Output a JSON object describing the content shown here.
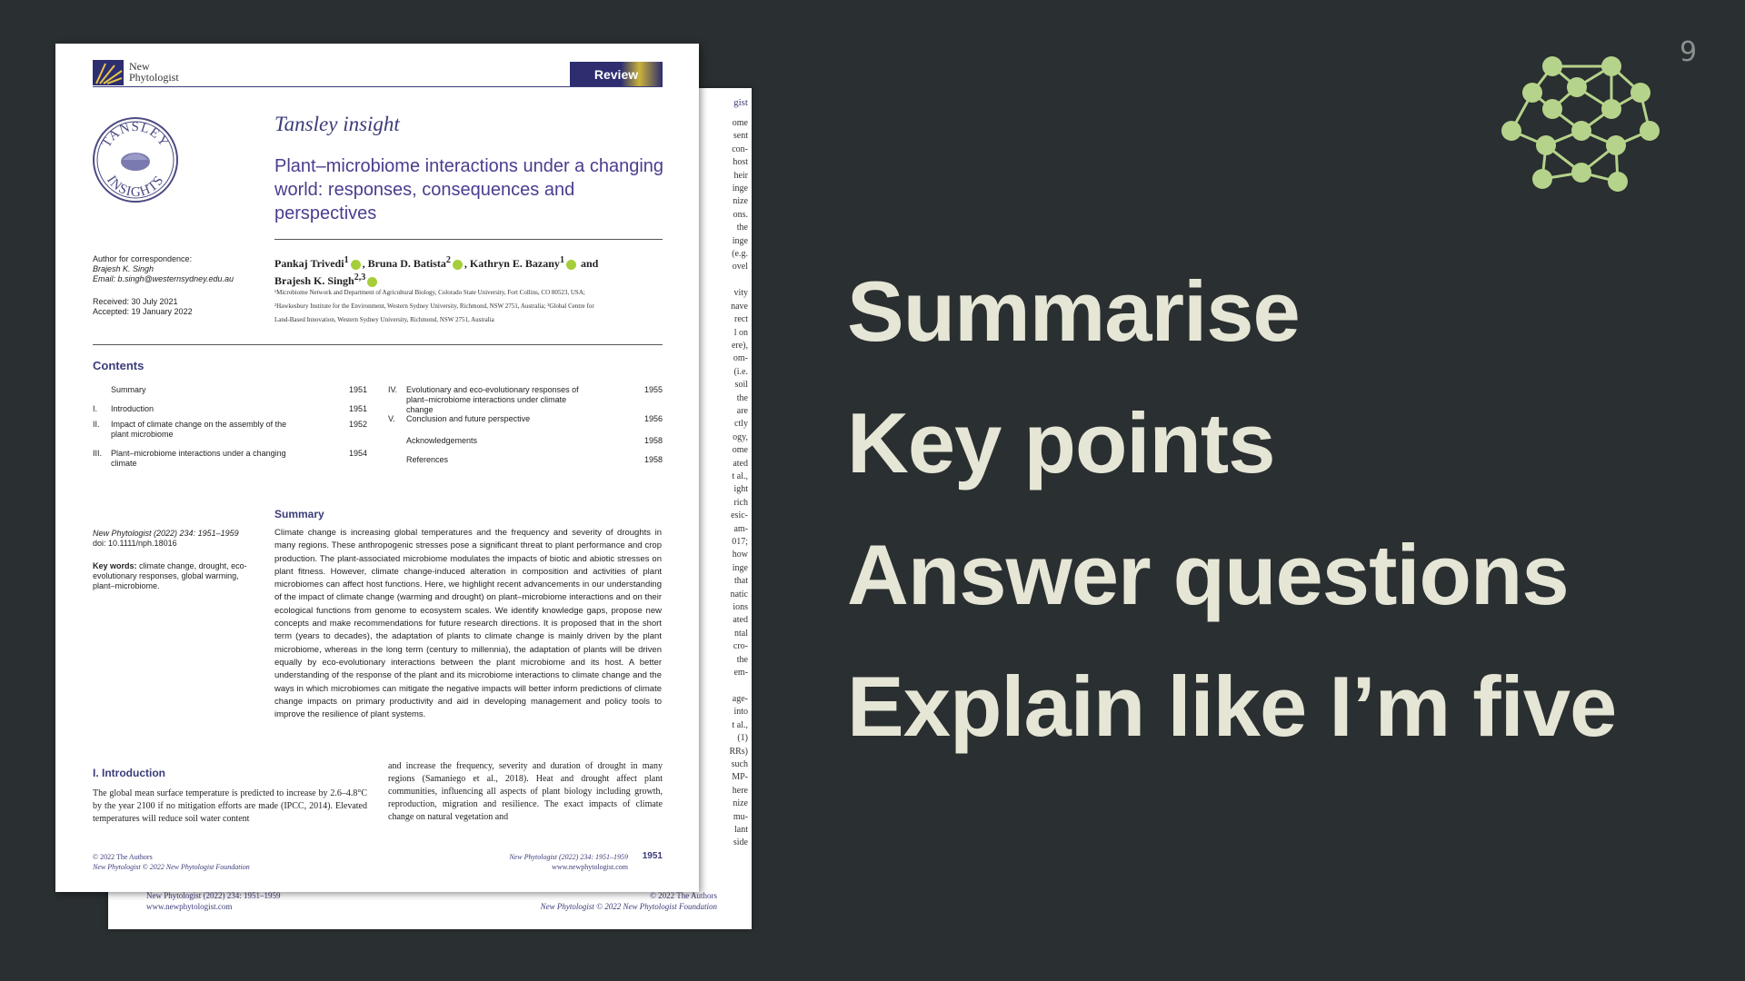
{
  "slide": {
    "number": "9",
    "bullets": [
      "Summarise",
      "Key points",
      "Answer questions",
      "Explain like I’m five"
    ],
    "accent_color": "#b5d38a",
    "background_color": "#2a2f31",
    "logo_icon": "network-graph-icon"
  },
  "back_page": {
    "header_fragment": "gist",
    "column_fragments": [
      "ome",
      "sent",
      "con-",
      "host",
      "heir",
      "inge",
      "nize",
      "ons.",
      "the",
      "inge",
      "(e.g.",
      "ovel",
      "",
      "vity",
      "nave",
      "rect",
      "l on",
      "ere),",
      "om-",
      "(i.e.",
      "soil",
      "the",
      "are",
      "ctly",
      "ogy,",
      "ome",
      "ated",
      "t al.,",
      "ight",
      "rich",
      "esic-",
      "am-",
      "017;",
      "how",
      "inge",
      "that",
      "natic",
      "ions",
      "ated",
      "ntal",
      "cro-",
      "the",
      "em-",
      "",
      "age-",
      "into",
      "t al.,",
      "(1)",
      "RRs)",
      "such",
      "MP-",
      "here",
      "nize",
      "mu-",
      "lant",
      "side"
    ],
    "footer_left_1": "New Phytologist (2022) 234: 1951–1959",
    "footer_left_2": "www.newphytologist.com",
    "footer_right_1": "© 2022 The Authors",
    "footer_right_2": "New Phytologist © 2022 New Phytologist Foundation"
  },
  "paper": {
    "journal_line1": "New",
    "journal_line2": "Phytologist",
    "article_type": "Review",
    "series": "Tansley insight",
    "seal_text_top": "TANSLEY",
    "seal_text_bottom": "INSIGHTS",
    "title": "Plant–microbiome interactions under a changing world: responses, consequences and perspectives",
    "correspondence_label": "Author for correspondence:",
    "correspondence_name": "Brajesh K. Singh",
    "correspondence_email": "Email: b.singh@westernsydney.edu.au",
    "received": "Received: 30 July 2021",
    "accepted": "Accepted: 19 January 2022",
    "authors_line1": [
      "Pankaj Trivedi",
      "Bruna D. Batista",
      "Kathryn E. Bazany"
    ],
    "authors_sup": [
      "1",
      "2",
      "1",
      "2,3"
    ],
    "authors_and": "and",
    "authors_line2": "Brajesh K. Singh",
    "affiliation_1": "¹Microbiome Network and Department of Agricultural Biology, Colorado State University, Fort Collins, CO 80523, USA;",
    "affiliation_2": "²Hawkesbury Institute for the Environment, Western Sydney University, Richmond, NSW 2751, Australia; ³Global Centre for",
    "affiliation_3": "Land-Based Innovation, Western Sydney University, Richmond, NSW 2751, Australia",
    "contents_title": "Contents",
    "toc_left": [
      {
        "num": "",
        "label": "Summary",
        "page": "1951"
      },
      {
        "num": "I.",
        "label": "Introduction",
        "page": "1951"
      },
      {
        "num": "II.",
        "label": "Impact of climate change on the assembly of the plant microbiome",
        "page": "1952"
      },
      {
        "num": "III.",
        "label": "Plant–microbiome interactions under a changing climate",
        "page": "1954"
      }
    ],
    "toc_right": [
      {
        "num": "IV.",
        "label": "Evolutionary and eco-evolutionary responses of plant–microbiome interactions under climate change",
        "page": "1955"
      },
      {
        "num": "V.",
        "label": "Conclusion and future perspective",
        "page": "1956"
      },
      {
        "num": "",
        "label": "Acknowledgements",
        "page": "1958"
      },
      {
        "num": "",
        "label": "References",
        "page": "1958"
      }
    ],
    "citation": "New Phytologist (2022) 234: 1951–1959",
    "doi": "doi: 10.1111/nph.18016",
    "keywords_label": "Key words:",
    "keywords": "climate change, drought, eco-evolutionary responses, global warming, plant–microbiome.",
    "summary_title": "Summary",
    "summary_text": "Climate change is increasing global temperatures and the frequency and severity of droughts in many regions. These anthropogenic stresses pose a significant threat to plant performance and crop production. The plant-associated microbiome modulates the impacts of biotic and abiotic stresses on plant fitness. However, climate change-induced alteration in composition and activities of plant microbiomes can affect host functions. Here, we highlight recent advancements in our understanding of the impact of climate change (warming and drought) on plant–microbiome interactions and on their ecological functions from genome to ecosystem scales. We identify knowledge gaps, propose new concepts and make recommendations for future research directions. It is proposed that in the short term (years to decades), the adaptation of plants to climate change is mainly driven by the plant microbiome, whereas in the long term (century to millennia), the adaptation of plants will be driven equally by eco-evolutionary interactions between the plant microbiome and its host. A better understanding of the response of the plant and its microbiome interactions to climate change and the ways in which microbiomes can mitigate the negative impacts will better inform predictions of climate change impacts on primary productivity and aid in developing management and policy tools to improve the resilience of plant systems.",
    "intro_title": "I.  Introduction",
    "intro_left": "The global mean surface temperature is predicted to increase by 2.6–4.8°C by the year 2100 if no mitigation efforts are made (IPCC, 2014). Elevated temperatures will reduce soil water content",
    "intro_right": "and increase the frequency, severity and duration of drought in many regions (Samaniego et al., 2018). Heat and drought affect plant communities, influencing all aspects of plant biology including growth, reproduction, migration and resilience. The exact impacts of climate change on natural vegetation and",
    "footer_left_1": "© 2022 The Authors",
    "footer_left_2": "New Phytologist © 2022 New Phytologist Foundation",
    "footer_right_1": "New Phytologist (2022) 234: 1951–1959",
    "footer_right_2": "www.newphytologist.com",
    "page_number": "1951"
  }
}
